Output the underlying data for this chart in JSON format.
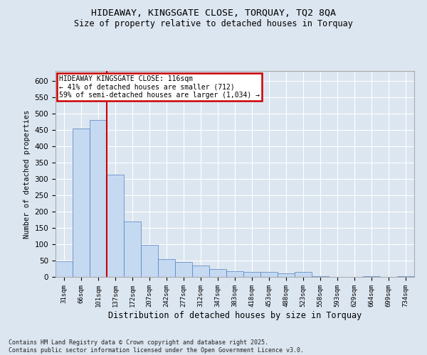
{
  "title": "HIDEAWAY, KINGSGATE CLOSE, TORQUAY, TQ2 8QA",
  "subtitle": "Size of property relative to detached houses in Torquay",
  "xlabel": "Distribution of detached houses by size in Torquay",
  "ylabel": "Number of detached properties",
  "bar_color": "#c5d9f1",
  "bar_edge_color": "#4f81bd",
  "background_color": "#dce6f1",
  "grid_color": "#ffffff",
  "categories": [
    "31sqm",
    "66sqm",
    "101sqm",
    "137sqm",
    "172sqm",
    "207sqm",
    "242sqm",
    "277sqm",
    "312sqm",
    "347sqm",
    "383sqm",
    "418sqm",
    "453sqm",
    "488sqm",
    "523sqm",
    "558sqm",
    "593sqm",
    "629sqm",
    "664sqm",
    "699sqm",
    "734sqm"
  ],
  "values": [
    47,
    455,
    480,
    312,
    170,
    98,
    55,
    46,
    34,
    23,
    17,
    15,
    15,
    10,
    15,
    2,
    0,
    0,
    2,
    0,
    2
  ],
  "ylim": [
    0,
    630
  ],
  "yticks": [
    0,
    50,
    100,
    150,
    200,
    250,
    300,
    350,
    400,
    450,
    500,
    550,
    600
  ],
  "property_line_x": 2.5,
  "property_line_color": "#cc0000",
  "legend_title": "HIDEAWAY KINGSGATE CLOSE: 116sqm",
  "legend_line1": "← 41% of detached houses are smaller (712)",
  "legend_line2": "59% of semi-detached houses are larger (1,034) →",
  "footnote1": "Contains HM Land Registry data © Crown copyright and database right 2025.",
  "footnote2": "Contains public sector information licensed under the Open Government Licence v3.0.",
  "fig_width": 6.0,
  "fig_height": 5.0,
  "dpi": 100
}
